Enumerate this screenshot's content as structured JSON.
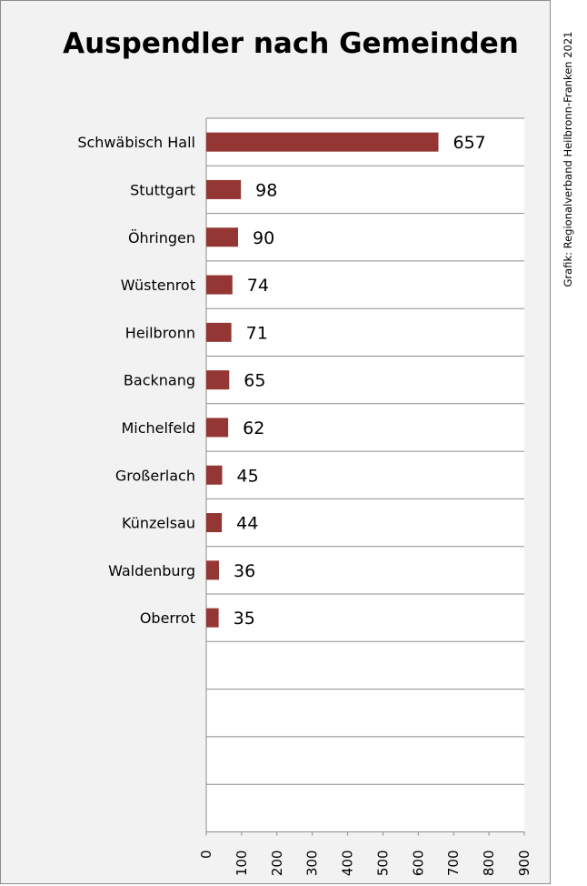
{
  "chart_data": {
    "type": "bar",
    "orientation": "horizontal",
    "title": "Auspendler nach Gemeinden",
    "credit": "Grafik: Regionalverband Heilbronn-Franken 2021",
    "categories": [
      "Schwäbisch Hall",
      "Stuttgart",
      "Öhringen",
      "Wüstenrot",
      "Heilbronn",
      "Backnang",
      "Michelfeld",
      "Großerlach",
      "Künzelsau",
      "Waldenburg",
      "Oberrot"
    ],
    "values": [
      657,
      98,
      90,
      74,
      71,
      65,
      62,
      45,
      44,
      36,
      35
    ],
    "xlim": [
      0,
      900
    ],
    "x_ticks": [
      "0",
      "100",
      "200",
      "300",
      "400",
      "500",
      "600",
      "700",
      "800",
      "900"
    ],
    "grid": true,
    "colors": {
      "bar": "#943634",
      "background": "#f2f2f2",
      "plot": "#ffffff",
      "grid": "#8c8c8c"
    }
  }
}
